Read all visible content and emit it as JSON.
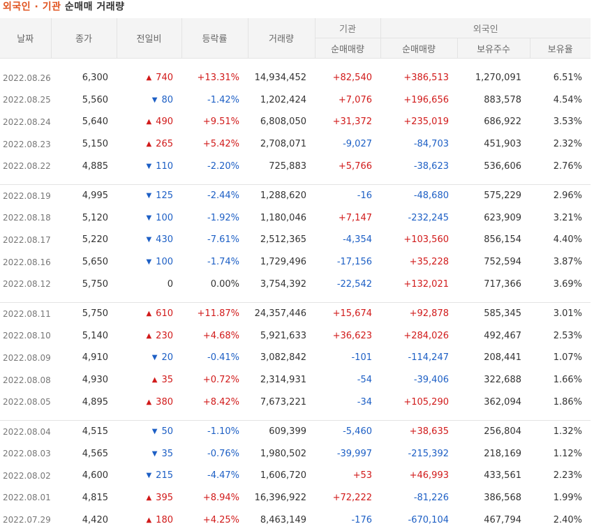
{
  "title": {
    "part1": "외국인 · 기관",
    "part2": "순매매 거래량"
  },
  "headers": {
    "date": "날짜",
    "close": "종가",
    "change": "전일비",
    "rate": "등락률",
    "volume": "거래량",
    "institution": "기관",
    "institution_net": "순매매량",
    "foreign": "외국인",
    "foreign_net": "순매매량",
    "holdings": "보유주수",
    "holding_ratio": "보유율"
  },
  "colors": {
    "up": "#d11a1a",
    "down": "#1d5fc5",
    "title_accent": "#e0531f"
  },
  "groups": [
    [
      {
        "date": "2022.08.26",
        "close": "6,300",
        "dir": "up",
        "change": "740",
        "rate": "+13.31%",
        "volume": "14,934,452",
        "inst": "+82,540",
        "foreign": "+386,513",
        "holdings": "1,270,091",
        "ratio": "6.51%"
      },
      {
        "date": "2022.08.25",
        "close": "5,560",
        "dir": "down",
        "change": "80",
        "rate": "-1.42%",
        "volume": "1,202,424",
        "inst": "+7,076",
        "foreign": "+196,656",
        "holdings": "883,578",
        "ratio": "4.54%"
      },
      {
        "date": "2022.08.24",
        "close": "5,640",
        "dir": "up",
        "change": "490",
        "rate": "+9.51%",
        "volume": "6,808,050",
        "inst": "+31,372",
        "foreign": "+235,019",
        "holdings": "686,922",
        "ratio": "3.53%"
      },
      {
        "date": "2022.08.23",
        "close": "5,150",
        "dir": "up",
        "change": "265",
        "rate": "+5.42%",
        "volume": "2,708,071",
        "inst": "-9,027",
        "foreign": "-84,703",
        "holdings": "451,903",
        "ratio": "2.32%"
      },
      {
        "date": "2022.08.22",
        "close": "4,885",
        "dir": "down",
        "change": "110",
        "rate": "-2.20%",
        "volume": "725,883",
        "inst": "+5,766",
        "foreign": "-38,623",
        "holdings": "536,606",
        "ratio": "2.76%"
      }
    ],
    [
      {
        "date": "2022.08.19",
        "close": "4,995",
        "dir": "down",
        "change": "125",
        "rate": "-2.44%",
        "volume": "1,288,620",
        "inst": "-16",
        "foreign": "-48,680",
        "holdings": "575,229",
        "ratio": "2.96%"
      },
      {
        "date": "2022.08.18",
        "close": "5,120",
        "dir": "down",
        "change": "100",
        "rate": "-1.92%",
        "volume": "1,180,046",
        "inst": "+7,147",
        "foreign": "-232,245",
        "holdings": "623,909",
        "ratio": "3.21%"
      },
      {
        "date": "2022.08.17",
        "close": "5,220",
        "dir": "down",
        "change": "430",
        "rate": "-7.61%",
        "volume": "2,512,365",
        "inst": "-4,354",
        "foreign": "+103,560",
        "holdings": "856,154",
        "ratio": "4.40%"
      },
      {
        "date": "2022.08.16",
        "close": "5,650",
        "dir": "down",
        "change": "100",
        "rate": "-1.74%",
        "volume": "1,729,496",
        "inst": "-17,156",
        "foreign": "+35,228",
        "holdings": "752,594",
        "ratio": "3.87%"
      },
      {
        "date": "2022.08.12",
        "close": "5,750",
        "dir": "none",
        "change": "0",
        "rate": "0.00%",
        "volume": "3,754,392",
        "inst": "-22,542",
        "foreign": "+132,021",
        "holdings": "717,366",
        "ratio": "3.69%"
      }
    ],
    [
      {
        "date": "2022.08.11",
        "close": "5,750",
        "dir": "up",
        "change": "610",
        "rate": "+11.87%",
        "volume": "24,357,446",
        "inst": "+15,674",
        "foreign": "+92,878",
        "holdings": "585,345",
        "ratio": "3.01%"
      },
      {
        "date": "2022.08.10",
        "close": "5,140",
        "dir": "up",
        "change": "230",
        "rate": "+4.68%",
        "volume": "5,921,633",
        "inst": "+36,623",
        "foreign": "+284,026",
        "holdings": "492,467",
        "ratio": "2.53%"
      },
      {
        "date": "2022.08.09",
        "close": "4,910",
        "dir": "down",
        "change": "20",
        "rate": "-0.41%",
        "volume": "3,082,842",
        "inst": "-101",
        "foreign": "-114,247",
        "holdings": "208,441",
        "ratio": "1.07%"
      },
      {
        "date": "2022.08.08",
        "close": "4,930",
        "dir": "up",
        "change": "35",
        "rate": "+0.72%",
        "volume": "2,314,931",
        "inst": "-54",
        "foreign": "-39,406",
        "holdings": "322,688",
        "ratio": "1.66%"
      },
      {
        "date": "2022.08.05",
        "close": "4,895",
        "dir": "up",
        "change": "380",
        "rate": "+8.42%",
        "volume": "7,673,221",
        "inst": "-34",
        "foreign": "+105,290",
        "holdings": "362,094",
        "ratio": "1.86%"
      }
    ],
    [
      {
        "date": "2022.08.04",
        "close": "4,515",
        "dir": "down",
        "change": "50",
        "rate": "-1.10%",
        "volume": "609,399",
        "inst": "-5,460",
        "foreign": "+38,635",
        "holdings": "256,804",
        "ratio": "1.32%"
      },
      {
        "date": "2022.08.03",
        "close": "4,565",
        "dir": "down",
        "change": "35",
        "rate": "-0.76%",
        "volume": "1,980,502",
        "inst": "-39,997",
        "foreign": "-215,392",
        "holdings": "218,169",
        "ratio": "1.12%"
      },
      {
        "date": "2022.08.02",
        "close": "4,600",
        "dir": "down",
        "change": "215",
        "rate": "-4.47%",
        "volume": "1,606,720",
        "inst": "+53",
        "foreign": "+46,993",
        "holdings": "433,561",
        "ratio": "2.23%"
      },
      {
        "date": "2022.08.01",
        "close": "4,815",
        "dir": "up",
        "change": "395",
        "rate": "+8.94%",
        "volume": "16,396,922",
        "inst": "+72,222",
        "foreign": "-81,226",
        "holdings": "386,568",
        "ratio": "1.99%"
      },
      {
        "date": "2022.07.29",
        "close": "4,420",
        "dir": "up",
        "change": "180",
        "rate": "+4.25%",
        "volume": "8,463,149",
        "inst": "-176",
        "foreign": "-670,104",
        "holdings": "467,794",
        "ratio": "2.40%"
      }
    ]
  ]
}
